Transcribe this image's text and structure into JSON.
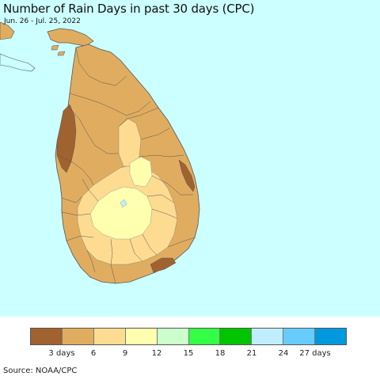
{
  "header": {
    "title": "Number of Rain Days in past 30 days (CPC)",
    "date_range": "Jun. 26 - Jul. 25, 2022"
  },
  "map": {
    "region": "Sri Lanka",
    "ocean_color": "#ccffff",
    "boundary_color": "#555555"
  },
  "legend": {
    "colors": [
      "#a0622f",
      "#e0ad60",
      "#fddc92",
      "#ffffb0",
      "#ccffcc",
      "#33ff44",
      "#00c400",
      "#bfefff",
      "#66ccff",
      "#0099dd"
    ],
    "ticks": [
      "3 days",
      "6",
      "9",
      "12",
      "15",
      "18",
      "21",
      "24",
      "27 days"
    ]
  },
  "footer": {
    "source": "Source: NOAA/CPC"
  }
}
